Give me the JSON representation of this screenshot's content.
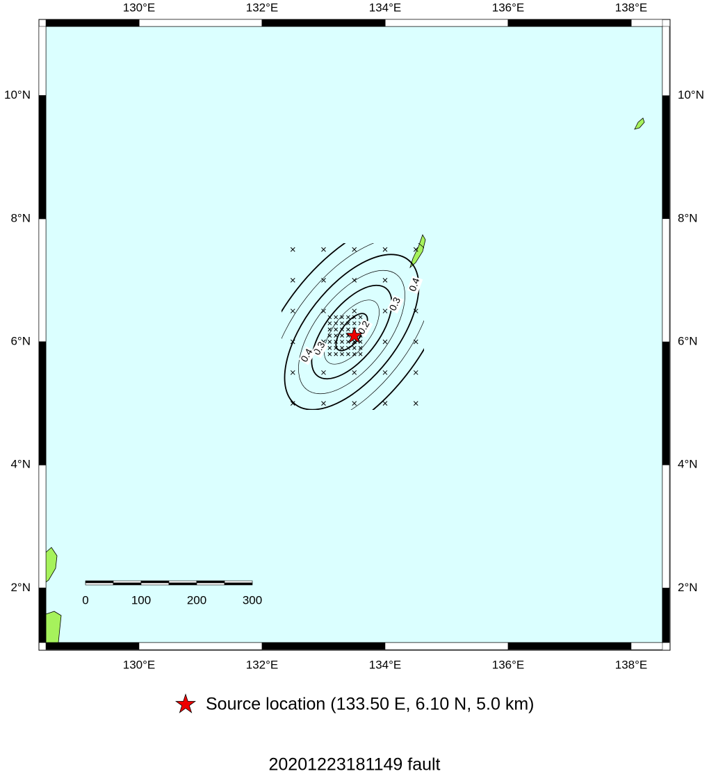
{
  "map": {
    "lon_ticks": [
      {
        "value": 130,
        "label": "130°E"
      },
      {
        "value": 132,
        "label": "132°E"
      },
      {
        "value": 134,
        "label": "134°E"
      },
      {
        "value": 136,
        "label": "136°E"
      },
      {
        "value": 138,
        "label": "138°E"
      }
    ],
    "lat_ticks": [
      {
        "value": 10,
        "label": "10°N"
      },
      {
        "value": 8,
        "label": "8°N"
      },
      {
        "value": 6,
        "label": "6°N"
      },
      {
        "value": 4,
        "label": "4°N"
      },
      {
        "value": 2,
        "label": "2°N"
      }
    ],
    "coarse_grid": {
      "lon": [
        132.5,
        133,
        133.5,
        134,
        134.5
      ],
      "lat": [
        5,
        5.5,
        6,
        6.5,
        7,
        7.5
      ]
    },
    "fine_grid": {
      "lon": [
        133.1,
        133.2,
        133.3,
        133.4,
        133.5,
        133.6
      ],
      "lat": [
        5.8,
        5.9,
        6.0,
        6.1,
        6.2,
        6.3,
        6.4
      ]
    },
    "contour_labels": [
      "0.4",
      "0.3",
      "0.2",
      "0.3",
      "0.4"
    ],
    "source": {
      "lon": 133.5,
      "lat": 6.1
    },
    "scale_bar": {
      "labels": [
        "0",
        "100",
        "200",
        "300"
      ]
    }
  },
  "legend": {
    "text": "Source location (133.50 E, 6.10 N, 5.0 km)"
  },
  "title": "20201223181149 fault"
}
